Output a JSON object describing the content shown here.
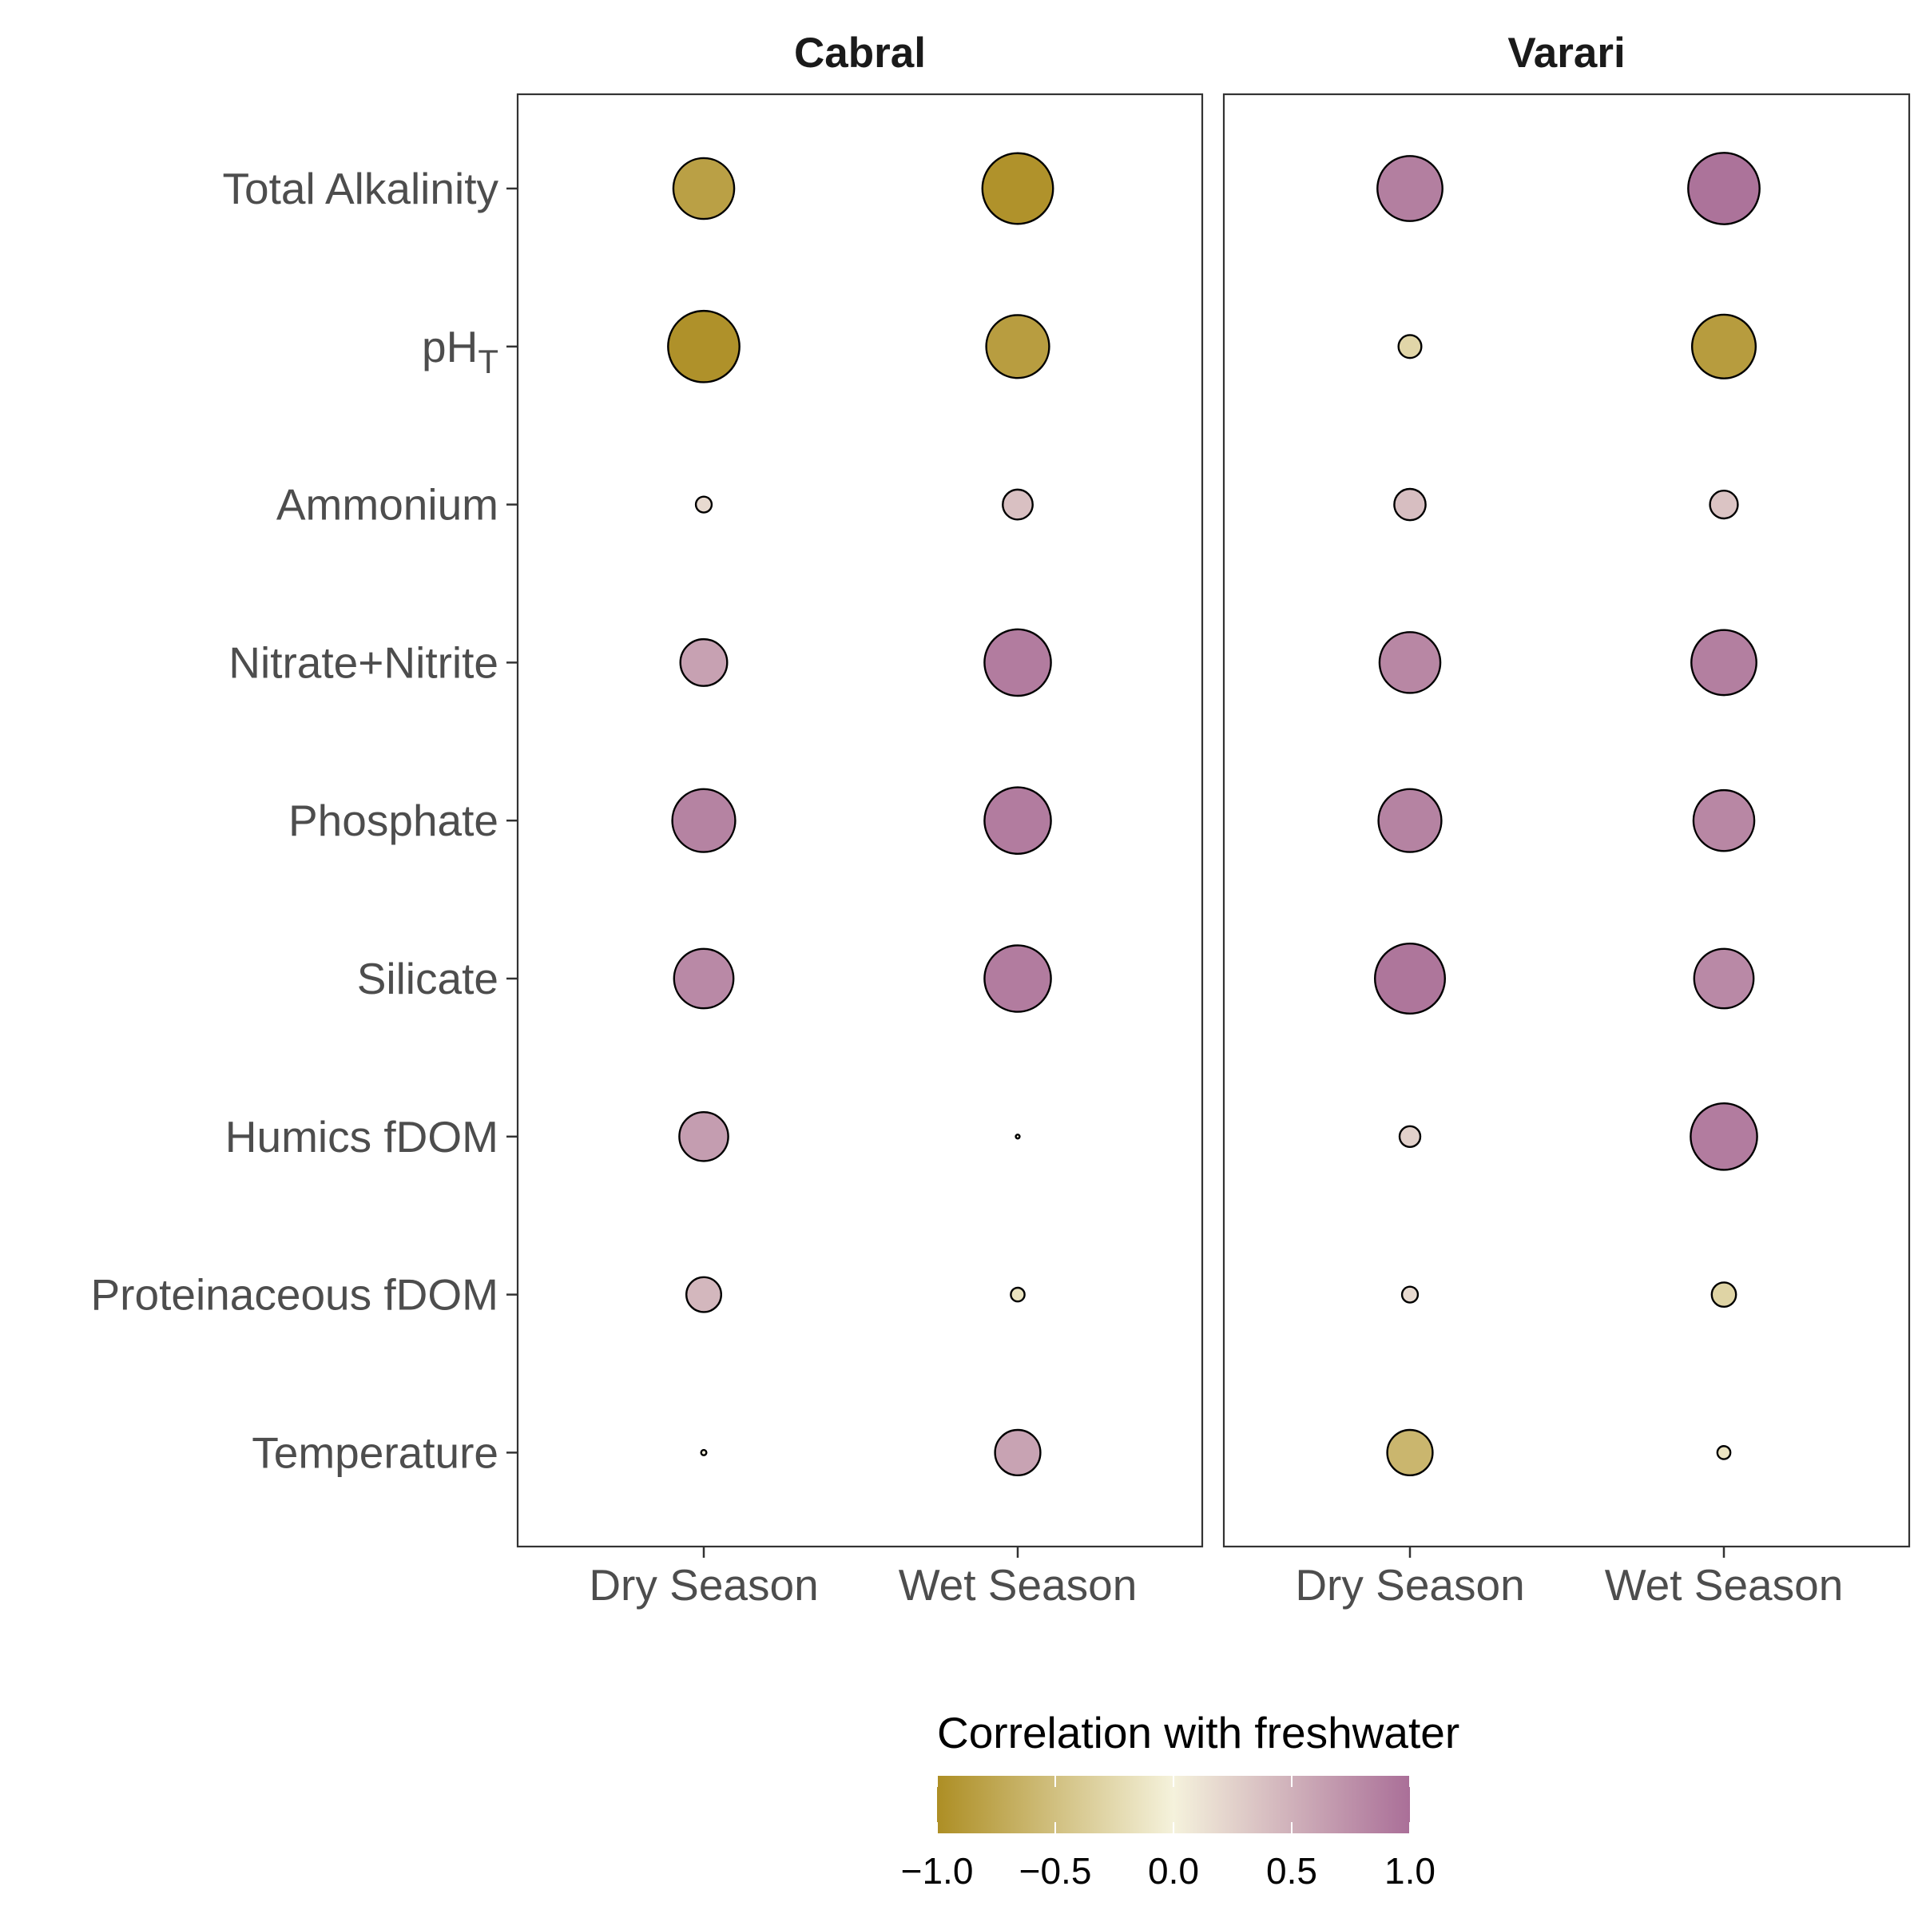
{
  "chart_data": {
    "type": "scatter",
    "panels": [
      "Cabral",
      "Varari"
    ],
    "categories": [
      "Dry Season",
      "Wet Season"
    ],
    "variables": [
      {
        "label": "Total Alkalinity",
        "sub": ""
      },
      {
        "label": "pH",
        "sub": "T"
      },
      {
        "label": "Ammonium",
        "sub": ""
      },
      {
        "label": "Nitrate+Nitrite",
        "sub": ""
      },
      {
        "label": "Phosphate",
        "sub": ""
      },
      {
        "label": "Silicate",
        "sub": ""
      },
      {
        "label": "Humics fDOM",
        "sub": ""
      },
      {
        "label": "Proteinaceous fDOM",
        "sub": ""
      },
      {
        "label": "Temperature",
        "sub": ""
      }
    ],
    "values": {
      "Cabral": [
        [
          -0.82,
          -0.96
        ],
        [
          -0.97,
          -0.85
        ],
        [
          0.18,
          0.38
        ],
        [
          0.62,
          0.9
        ],
        [
          0.85,
          0.9
        ],
        [
          0.8,
          0.9
        ],
        [
          0.65,
          0.01
        ],
        [
          0.45,
          -0.15
        ],
        [
          0.03,
          0.6
        ]
      ],
      "Varari": [
        [
          0.88,
          0.97
        ],
        [
          -0.28,
          -0.86
        ],
        [
          0.4,
          0.35
        ],
        [
          0.82,
          0.88
        ],
        [
          0.85,
          0.82
        ],
        [
          0.95,
          0.8
        ],
        [
          0.25,
          0.9
        ],
        [
          0.18,
          -0.3
        ],
        [
          -0.6,
          -0.14
        ]
      ]
    },
    "size": "absolute correlation",
    "color_scale": {
      "title": "Correlation with freshwater",
      "range": [
        -1.0,
        1.0
      ],
      "ticks": [
        "−1.0",
        "−0.5",
        "0.0",
        "0.5",
        "1.0"
      ],
      "colors": {
        "low": "#ad8e24",
        "mid": "#f5f2dc",
        "high": "#aa6f98"
      }
    },
    "legend_position": "bottom",
    "grid": false
  }
}
